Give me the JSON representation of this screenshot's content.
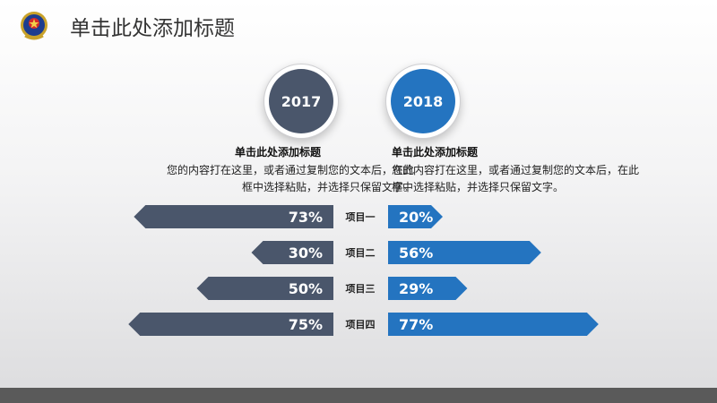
{
  "header": {
    "title": "单击此处添加标题",
    "emblem_icon": "police-emblem-icon"
  },
  "columns": {
    "left": {
      "year": "2017",
      "color": "#4a566b",
      "heading": "单击此处添加标题",
      "body_lines": [
        "您的内容打在这里，或者通过复制您的文本后，在此",
        "框中选择粘贴，并选择只保留文字。"
      ]
    },
    "right": {
      "year": "2018",
      "color": "#2474c0",
      "heading": "单击此处添加标题",
      "body_lines": [
        "您的内容打在这里，或者通过复制您的文本后，在此",
        "框中选择粘贴，并选择只保留文字。"
      ]
    }
  },
  "items": [
    {
      "label": "项目一",
      "left_value": 73,
      "left_text": "73%",
      "right_value": 20,
      "right_text": "20%"
    },
    {
      "label": "项目二",
      "left_value": 30,
      "left_text": "30%",
      "right_value": 56,
      "right_text": "56%"
    },
    {
      "label": "项目三",
      "left_value": 50,
      "left_text": "50%",
      "right_value": 29,
      "right_text": "29%"
    },
    {
      "label": "项目四",
      "left_value": 75,
      "left_text": "75%",
      "right_value": 77,
      "right_text": "77%"
    }
  ],
  "footer": {
    "color": "#5a5a5a"
  }
}
